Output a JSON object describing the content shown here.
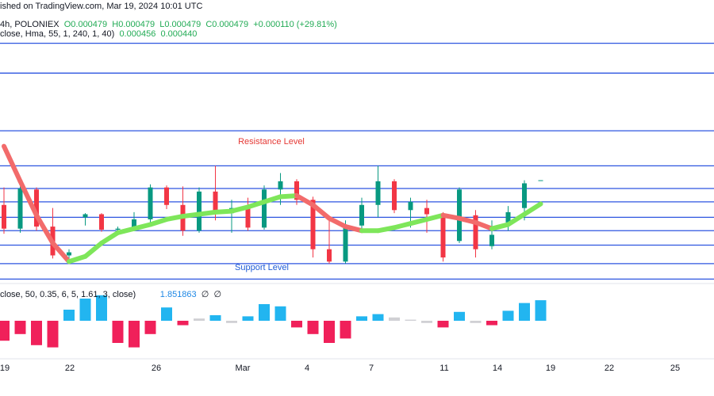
{
  "header": {
    "published": "ished on TradingView.com, Mar 19, 2024 10:01 UTC",
    "symbol": "4h, POLONIEX",
    "ohlc": "O0.000479  H0.000479  L0.000479  C0.000479  +0.000110 (+29.81%)",
    "hma_settings": "close, Hma, 55, 1, 240, 1, 40)",
    "hma_value_1": "0.000456",
    "hma_value_2": "0.000440",
    "osc_settings": "close, 50, 0.35, 6, 5, 1.61, 3, close)",
    "osc_symbols": "∅  ∅"
  },
  "chart_data": {
    "type": "candlestick",
    "annotations": [
      "Resistance Level",
      "Support Level"
    ],
    "x_axis_labels": [
      "19",
      "22",
      "26",
      "Mar",
      "4",
      "7",
      "11",
      "14",
      "19",
      "22",
      "25"
    ],
    "ylim": [
      0.000381,
      0.000654
    ],
    "levels": [
      0.000612,
      0.000583,
      0.000527,
      0.000493,
      0.000471,
      0.000458,
      0.000443,
      0.00043,
      0.000416,
      0.000398,
      0.000383
    ],
    "level_color": "#2d55e0",
    "up_color": "#089981",
    "down_color": "#f23645",
    "open": [
      0.000455,
      0.000432,
      0.00047,
      0.000434,
      0.000406,
      0.000443,
      0.000446,
      0.000431,
      0.000432,
      0.000441,
      0.000472,
      0.000455,
      0.00043,
      0.000468,
      0.000447,
      0.000452,
      0.000433,
      0.00047,
      0.000478,
      0.00046,
      0.000412,
      0.0004,
      0.000435,
      0.000455,
      0.000478,
      0.00045,
      0.000452,
      0.000446,
      0.00042,
      0.000445,
      0.000415,
      0.000438,
      0.000452,
      0.000479
    ],
    "high": [
      0.000472,
      0.000473,
      0.000472,
      0.000452,
      0.000412,
      0.000447,
      0.000447,
      0.000434,
      0.000448,
      0.000475,
      0.000474,
      0.000473,
      0.000472,
      0.000493,
      0.00046,
      0.000462,
      0.000474,
      0.000486,
      0.00048,
      0.000463,
      0.00044,
      0.00044,
      0.000462,
      0.000493,
      0.00048,
      0.000462,
      0.00046,
      0.000448,
      0.000472,
      0.00045,
      0.00044,
      0.000454,
      0.000479,
      0.000479
    ],
    "low": [
      0.000427,
      0.000428,
      0.00043,
      0.000403,
      0.000403,
      0.000435,
      0.000429,
      0.000428,
      0.00043,
      0.000437,
      0.000451,
      0.000425,
      0.000428,
      0.00044,
      0.000428,
      0.00043,
      0.000431,
      0.000455,
      0.000455,
      0.000404,
      0.000398,
      0.000398,
      0.00043,
      0.000443,
      0.000447,
      0.000433,
      0.000428,
      0.0004,
      0.000418,
      0.000404,
      0.000412,
      0.00043,
      0.00044,
      0.000479
    ],
    "close": [
      0.000432,
      0.000471,
      0.000434,
      0.000406,
      0.000409,
      0.000446,
      0.000431,
      0.000432,
      0.000441,
      0.000472,
      0.000455,
      0.00043,
      0.000468,
      0.000447,
      0.000452,
      0.000433,
      0.00047,
      0.000478,
      0.00046,
      0.000412,
      0.0004,
      0.000435,
      0.000455,
      0.000478,
      0.00045,
      0.000458,
      0.000446,
      0.000404,
      0.00047,
      0.000412,
      0.000426,
      0.000448,
      0.000476,
      0.000479
    ],
    "hma": [
      0.000512,
      0.000478,
      0.000445,
      0.000418,
      0.0004,
      0.000405,
      0.000418,
      0.000428,
      0.000432,
      0.000436,
      0.000441,
      0.000444,
      0.000446,
      0.000448,
      0.000449,
      0.000453,
      0.000458,
      0.000463,
      0.000464,
      0.000455,
      0.000442,
      0.000434,
      0.00043,
      0.00043,
      0.000433,
      0.000437,
      0.000441,
      0.000445,
      0.000442,
      0.000438,
      0.000432,
      0.000436,
      0.000446,
      0.000456
    ],
    "hma_up_color": "#7ee65a",
    "hma_down_color": "#f26b6b",
    "osc": [
      -1.8,
      -1.2,
      -2.2,
      -2.4,
      1,
      2,
      2.3,
      -2,
      -2.4,
      -1.2,
      1.2,
      -0.4,
      0.2,
      0.5,
      -0.2,
      0.4,
      1.5,
      1.3,
      -0.6,
      -1.2,
      -2,
      -1.6,
      0.4,
      0.6,
      0.3,
      0.1,
      -0.2,
      -0.6,
      0.8,
      -0.2,
      -0.4,
      0.9,
      1.6,
      1.851863
    ],
    "osc_ylim": [
      -3,
      3
    ],
    "osc_colors": {
      "up": "#22b5f0",
      "down": "#f0205a",
      "flat": "#d0d0d4"
    }
  }
}
